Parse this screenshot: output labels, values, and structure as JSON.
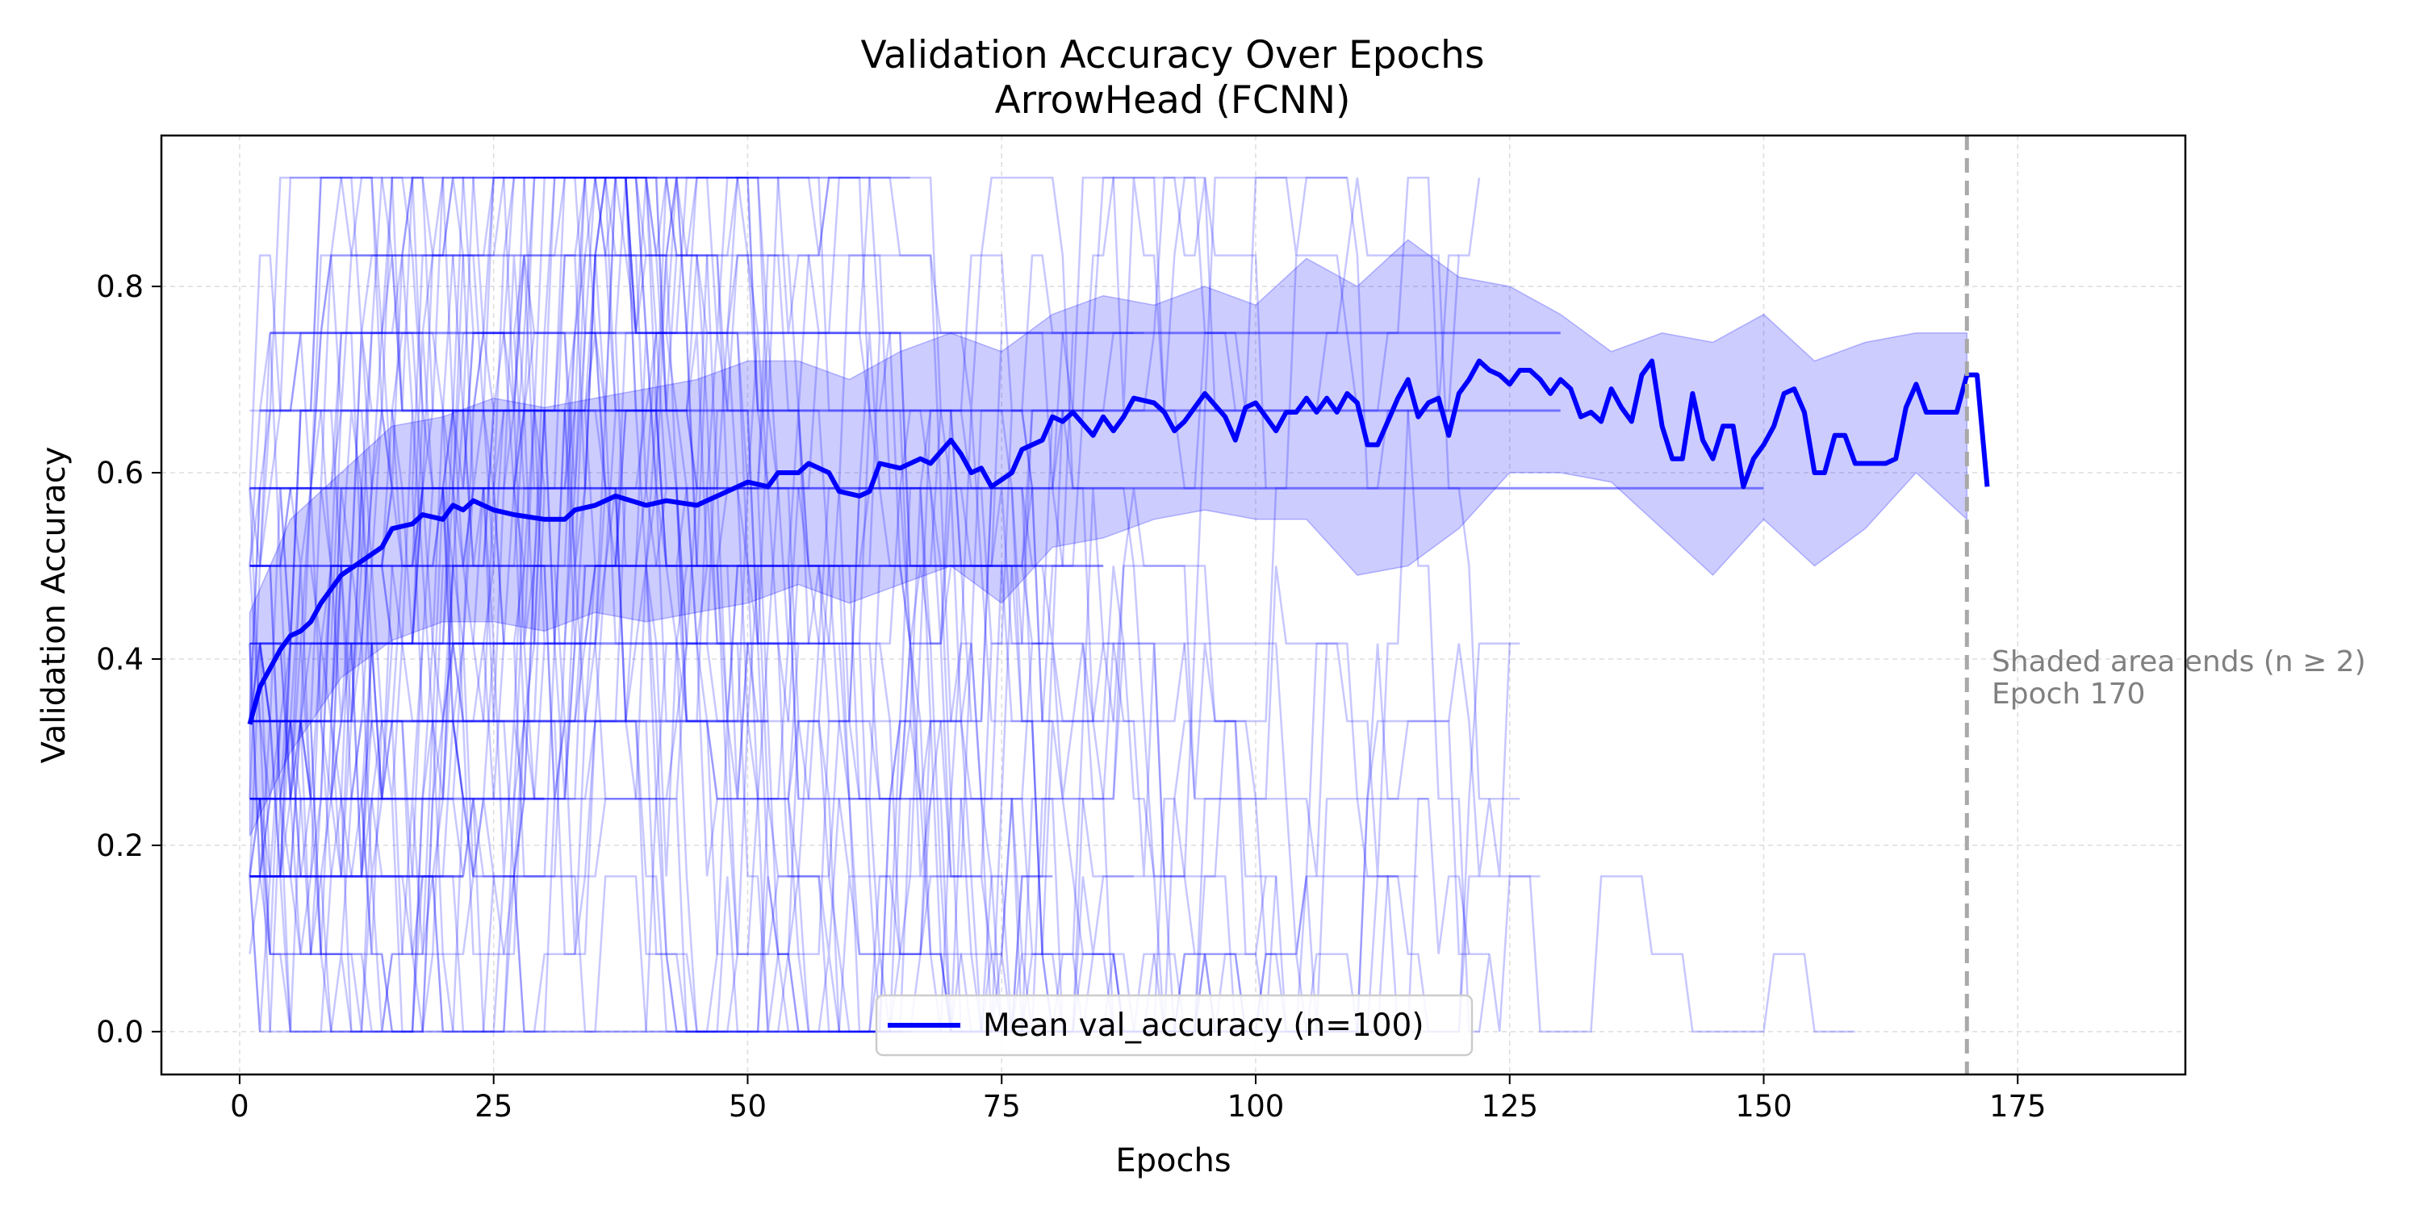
{
  "chart_data": {
    "type": "line",
    "title": "Validation Accuracy Over Epochs",
    "subtitle": "ArrowHead (FCNN)",
    "xlabel": "Epochs",
    "ylabel": "Validation Accuracy",
    "xlim": [
      -7.7,
      191.5
    ],
    "ylim": [
      -0.046,
      0.962
    ],
    "x_ticks": [
      0,
      25,
      50,
      75,
      100,
      125,
      150,
      175
    ],
    "x_tick_labels": [
      "0",
      "25",
      "50",
      "75",
      "100",
      "125",
      "150",
      "175"
    ],
    "y_ticks": [
      0.0,
      0.2,
      0.4,
      0.6,
      0.8
    ],
    "y_tick_labels": [
      "0.0",
      "0.2",
      "0.4",
      "0.6",
      "0.8"
    ],
    "grid": true,
    "legend_position": "bottom-center",
    "series": [
      {
        "name": "Mean val_accuracy (n=100)",
        "color": "#0000ff",
        "mean_keypoints": [
          [
            1,
            0.33
          ],
          [
            2,
            0.37
          ],
          [
            3,
            0.39
          ],
          [
            4,
            0.41
          ],
          [
            5,
            0.425
          ],
          [
            6,
            0.43
          ],
          [
            7,
            0.44
          ],
          [
            8,
            0.46
          ],
          [
            9,
            0.475
          ],
          [
            10,
            0.49
          ],
          [
            12,
            0.505
          ],
          [
            14,
            0.52
          ],
          [
            15,
            0.54
          ],
          [
            17,
            0.545
          ],
          [
            18,
            0.555
          ],
          [
            20,
            0.55
          ],
          [
            21,
            0.565
          ],
          [
            22,
            0.56
          ],
          [
            23,
            0.57
          ],
          [
            25,
            0.56
          ],
          [
            27,
            0.555
          ],
          [
            30,
            0.55
          ],
          [
            32,
            0.55
          ],
          [
            33,
            0.56
          ],
          [
            35,
            0.565
          ],
          [
            37,
            0.575
          ],
          [
            40,
            0.565
          ],
          [
            42,
            0.57
          ],
          [
            45,
            0.565
          ],
          [
            47,
            0.575
          ],
          [
            50,
            0.59
          ],
          [
            52,
            0.585
          ],
          [
            53,
            0.6
          ],
          [
            55,
            0.6
          ],
          [
            56,
            0.61
          ],
          [
            58,
            0.6
          ],
          [
            59,
            0.58
          ],
          [
            61,
            0.575
          ],
          [
            62,
            0.58
          ],
          [
            63,
            0.61
          ],
          [
            65,
            0.605
          ],
          [
            67,
            0.615
          ],
          [
            68,
            0.61
          ],
          [
            70,
            0.635
          ],
          [
            71,
            0.62
          ],
          [
            72,
            0.6
          ],
          [
            73,
            0.605
          ],
          [
            74,
            0.585
          ],
          [
            76,
            0.6
          ],
          [
            77,
            0.625
          ],
          [
            79,
            0.635
          ],
          [
            80,
            0.66
          ],
          [
            81,
            0.655
          ],
          [
            82,
            0.665
          ],
          [
            84,
            0.64
          ],
          [
            85,
            0.66
          ],
          [
            86,
            0.645
          ],
          [
            87,
            0.66
          ],
          [
            88,
            0.68
          ],
          [
            90,
            0.675
          ],
          [
            91,
            0.665
          ],
          [
            92,
            0.645
          ],
          [
            93,
            0.655
          ],
          [
            95,
            0.685
          ],
          [
            97,
            0.66
          ],
          [
            98,
            0.635
          ],
          [
            99,
            0.67
          ],
          [
            100,
            0.675
          ],
          [
            101,
            0.66
          ],
          [
            102,
            0.645
          ],
          [
            103,
            0.665
          ],
          [
            104,
            0.665
          ],
          [
            105,
            0.68
          ],
          [
            106,
            0.665
          ],
          [
            107,
            0.68
          ],
          [
            108,
            0.665
          ],
          [
            109,
            0.685
          ],
          [
            110,
            0.675
          ],
          [
            111,
            0.63
          ],
          [
            112,
            0.63
          ],
          [
            113,
            0.655
          ],
          [
            114,
            0.68
          ],
          [
            115,
            0.7
          ],
          [
            116,
            0.66
          ],
          [
            117,
            0.675
          ],
          [
            118,
            0.68
          ],
          [
            119,
            0.64
          ],
          [
            120,
            0.685
          ],
          [
            121,
            0.7
          ],
          [
            122,
            0.72
          ],
          [
            123,
            0.71
          ],
          [
            124,
            0.705
          ],
          [
            125,
            0.695
          ],
          [
            126,
            0.71
          ],
          [
            127,
            0.71
          ],
          [
            128,
            0.7
          ],
          [
            129,
            0.685
          ],
          [
            130,
            0.7
          ],
          [
            131,
            0.69
          ],
          [
            132,
            0.66
          ],
          [
            133,
            0.665
          ],
          [
            134,
            0.655
          ],
          [
            135,
            0.69
          ],
          [
            136,
            0.67
          ],
          [
            137,
            0.655
          ],
          [
            138,
            0.705
          ],
          [
            139,
            0.72
          ],
          [
            140,
            0.65
          ],
          [
            141,
            0.615
          ],
          [
            142,
            0.615
          ],
          [
            143,
            0.685
          ],
          [
            144,
            0.635
          ],
          [
            145,
            0.615
          ],
          [
            146,
            0.65
          ],
          [
            147,
            0.65
          ],
          [
            148,
            0.585
          ],
          [
            149,
            0.615
          ],
          [
            150,
            0.63
          ],
          [
            151,
            0.65
          ],
          [
            152,
            0.685
          ],
          [
            153,
            0.69
          ],
          [
            154,
            0.665
          ],
          [
            155,
            0.6
          ],
          [
            156,
            0.6
          ],
          [
            157,
            0.64
          ],
          [
            158,
            0.64
          ],
          [
            159,
            0.61
          ],
          [
            160,
            0.61
          ],
          [
            161,
            0.61
          ],
          [
            162,
            0.61
          ],
          [
            163,
            0.615
          ],
          [
            164,
            0.67
          ],
          [
            165,
            0.695
          ],
          [
            166,
            0.665
          ],
          [
            167,
            0.665
          ],
          [
            168,
            0.665
          ],
          [
            169,
            0.665
          ],
          [
            170,
            0.705
          ],
          [
            171,
            0.705
          ],
          [
            172,
            0.585
          ]
        ],
        "std_band_upper": [
          [
            1,
            0.45
          ],
          [
            5,
            0.55
          ],
          [
            10,
            0.6
          ],
          [
            15,
            0.65
          ],
          [
            20,
            0.66
          ],
          [
            25,
            0.68
          ],
          [
            30,
            0.67
          ],
          [
            35,
            0.68
          ],
          [
            40,
            0.69
          ],
          [
            45,
            0.7
          ],
          [
            50,
            0.72
          ],
          [
            55,
            0.72
          ],
          [
            60,
            0.7
          ],
          [
            65,
            0.73
          ],
          [
            70,
            0.75
          ],
          [
            75,
            0.73
          ],
          [
            80,
            0.77
          ],
          [
            85,
            0.79
          ],
          [
            90,
            0.78
          ],
          [
            95,
            0.8
          ],
          [
            100,
            0.78
          ],
          [
            105,
            0.83
          ],
          [
            110,
            0.8
          ],
          [
            115,
            0.85
          ],
          [
            120,
            0.81
          ],
          [
            125,
            0.8
          ],
          [
            130,
            0.77
          ],
          [
            135,
            0.73
          ],
          [
            140,
            0.75
          ],
          [
            145,
            0.74
          ],
          [
            150,
            0.77
          ],
          [
            155,
            0.72
          ],
          [
            160,
            0.74
          ],
          [
            165,
            0.75
          ],
          [
            170,
            0.75
          ]
        ],
        "std_band_lower": [
          [
            1,
            0.21
          ],
          [
            5,
            0.3
          ],
          [
            10,
            0.38
          ],
          [
            15,
            0.42
          ],
          [
            20,
            0.44
          ],
          [
            25,
            0.44
          ],
          [
            30,
            0.43
          ],
          [
            35,
            0.45
          ],
          [
            40,
            0.44
          ],
          [
            45,
            0.45
          ],
          [
            50,
            0.46
          ],
          [
            55,
            0.48
          ],
          [
            60,
            0.46
          ],
          [
            65,
            0.48
          ],
          [
            70,
            0.5
          ],
          [
            75,
            0.46
          ],
          [
            80,
            0.52
          ],
          [
            85,
            0.53
          ],
          [
            90,
            0.55
          ],
          [
            95,
            0.56
          ],
          [
            100,
            0.55
          ],
          [
            105,
            0.55
          ],
          [
            110,
            0.49
          ],
          [
            115,
            0.5
          ],
          [
            120,
            0.54
          ],
          [
            125,
            0.6
          ],
          [
            130,
            0.6
          ],
          [
            135,
            0.59
          ],
          [
            140,
            0.54
          ],
          [
            145,
            0.49
          ],
          [
            150,
            0.55
          ],
          [
            155,
            0.5
          ],
          [
            160,
            0.54
          ],
          [
            165,
            0.6
          ],
          [
            170,
            0.55
          ]
        ]
      }
    ],
    "individual_runs": {
      "count": 100,
      "color": "#0000ff",
      "accuracy_levels": [
        0.0,
        0.0833,
        0.1667,
        0.25,
        0.3333,
        0.4167,
        0.5,
        0.5833,
        0.6667,
        0.75,
        0.8333,
        0.9167
      ]
    },
    "vline": {
      "x": 170,
      "color": "#a9a9a9"
    },
    "annotation": {
      "line1": "Shaded area ends (n ≥ 2)",
      "line2": "Epoch 170"
    },
    "legend_label": "Mean val_accuracy (n=100)"
  }
}
